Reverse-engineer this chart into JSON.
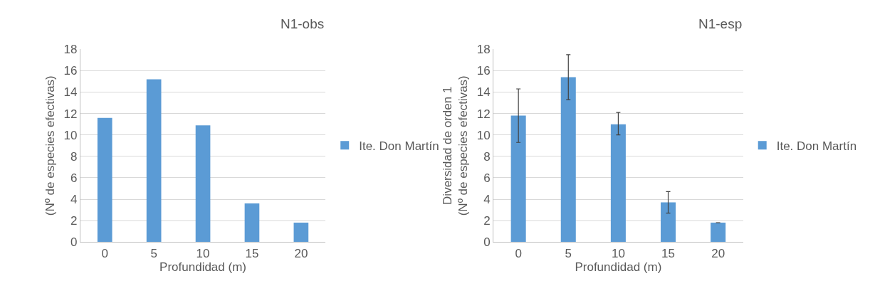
{
  "chart_data": [
    {
      "type": "bar",
      "title": "N1-obs",
      "xlabel": "Profundidad (m)",
      "ylabel": "(Nº de especies efectivas)",
      "categories": [
        "0",
        "5",
        "10",
        "15",
        "20"
      ],
      "series": [
        {
          "name": "Ite. Don Martín",
          "color": "#5b9bd5",
          "values": [
            11.6,
            15.2,
            10.9,
            3.6,
            1.8
          ]
        }
      ],
      "ylim": [
        0,
        18
      ],
      "yticks": [
        0,
        2,
        4,
        6,
        8,
        10,
        12,
        14,
        16,
        18
      ],
      "grid": "y",
      "legend": "right"
    },
    {
      "type": "bar",
      "title": "N1-esp",
      "xlabel": "Profundidad (m)",
      "ylabel": "Diversidad de orden 1\n(Nº de especies efectivas)",
      "categories": [
        "0",
        "5",
        "10",
        "15",
        "20"
      ],
      "series": [
        {
          "name": "Ite. Don Martín",
          "color": "#5b9bd5",
          "values": [
            11.8,
            15.4,
            11.0,
            3.7,
            1.8
          ],
          "errors": [
            [
              9.3,
              14.3
            ],
            [
              13.3,
              17.5
            ],
            [
              10.0,
              12.1
            ],
            [
              2.7,
              4.7
            ],
            null
          ]
        }
      ],
      "ylim": [
        0,
        18
      ],
      "yticks": [
        0,
        2,
        4,
        6,
        8,
        10,
        12,
        14,
        16,
        18
      ],
      "grid": "y",
      "legend": "right"
    }
  ]
}
